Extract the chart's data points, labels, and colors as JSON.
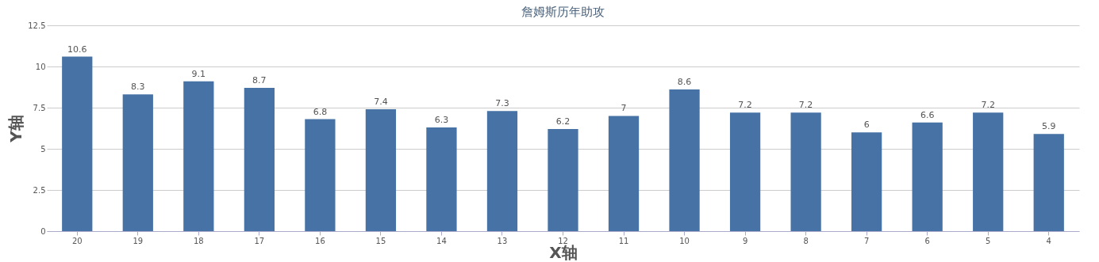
{
  "chart_data": {
    "type": "bar",
    "title": "詹姆斯历年助攻",
    "xlabel": "X轴",
    "ylabel": "Y轴",
    "categories": [
      "20",
      "19",
      "18",
      "17",
      "16",
      "15",
      "14",
      "13",
      "12",
      "11",
      "10",
      "9",
      "8",
      "7",
      "6",
      "5",
      "4"
    ],
    "values": [
      10.6,
      8.3,
      9.1,
      8.7,
      6.8,
      7.4,
      6.3,
      7.3,
      6.2,
      7,
      8.6,
      7.2,
      7.2,
      6,
      6.6,
      7.2,
      5.9
    ],
    "color": "#4672a6",
    "ylim": [
      0,
      12.5
    ],
    "yticks": [
      0,
      2.5,
      5,
      7.5,
      10,
      12.5
    ],
    "grid": "y",
    "data_labels": true
  }
}
